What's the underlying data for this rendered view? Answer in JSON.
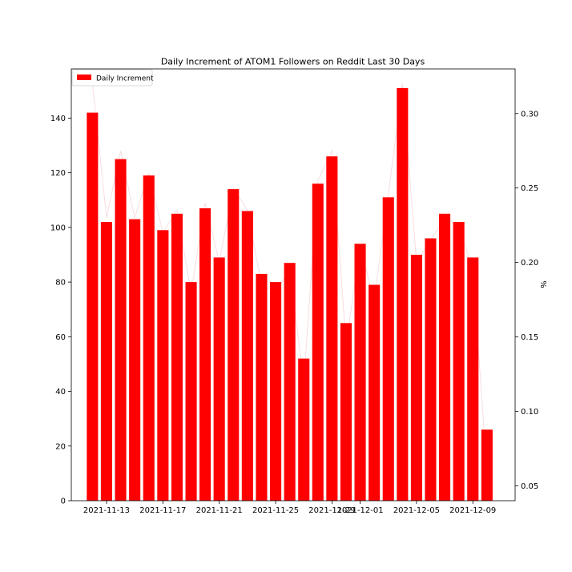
{
  "colors": {
    "bar": "#ff0000",
    "line": "#f7dde1",
    "axis": "#000000",
    "background": "#ffffff"
  },
  "chart_data": {
    "type": "bar",
    "title": "Daily Increment of ATOM1 Followers on Reddit Last 30 Days",
    "xlabel": "",
    "ylabel": "",
    "y2label": "%",
    "grid": false,
    "legend_position": "upper-left",
    "x": [
      "2021-11-12",
      "2021-11-13",
      "2021-11-14",
      "2021-11-15",
      "2021-11-16",
      "2021-11-17",
      "2021-11-18",
      "2021-11-19",
      "2021-11-20",
      "2021-11-21",
      "2021-11-22",
      "2021-11-23",
      "2021-11-24",
      "2021-11-25",
      "2021-11-26",
      "2021-11-27",
      "2021-11-28",
      "2021-11-29",
      "2021-11-30",
      "2021-12-01",
      "2021-12-02",
      "2021-12-03",
      "2021-12-04",
      "2021-12-05",
      "2021-12-06",
      "2021-12-07",
      "2021-12-08",
      "2021-12-09",
      "2021-12-10"
    ],
    "xlim": [
      "2021-11-10T12:00",
      "2021-12-12"
    ],
    "x_ticks": [
      "2021-11-13",
      "2021-11-17",
      "2021-11-21",
      "2021-11-25",
      "2021-11-29",
      "2021-12-01",
      "2021-12-05",
      "2021-12-09"
    ],
    "ylim": [
      0,
      158
    ],
    "y_ticks": [
      0,
      20,
      40,
      60,
      80,
      100,
      120,
      140
    ],
    "y2lim": [
      0.04,
      0.33
    ],
    "y2_ticks": [
      "0.05",
      "0.10",
      "0.15",
      "0.20",
      "0.25",
      "0.30"
    ],
    "series": [
      {
        "name": "Daily Increment",
        "type": "bar",
        "axis": "left",
        "values": [
          142,
          102,
          125,
          103,
          119,
          99,
          105,
          80,
          107,
          89,
          114,
          106,
          83,
          80,
          87,
          52,
          116,
          126,
          65,
          94,
          79,
          111,
          151,
          90,
          96,
          105,
          102,
          89,
          26
        ]
      },
      {
        "type": "line",
        "axis": "right",
        "values": [
          0.32,
          0.23,
          0.275,
          0.23,
          0.26,
          0.22,
          0.235,
          0.18,
          0.24,
          0.2,
          0.25,
          0.235,
          0.185,
          0.18,
          0.195,
          0.12,
          0.255,
          0.275,
          0.145,
          0.21,
          0.175,
          0.245,
          0.32,
          0.2,
          0.215,
          0.23,
          0.225,
          0.195,
          0.06
        ]
      }
    ]
  }
}
